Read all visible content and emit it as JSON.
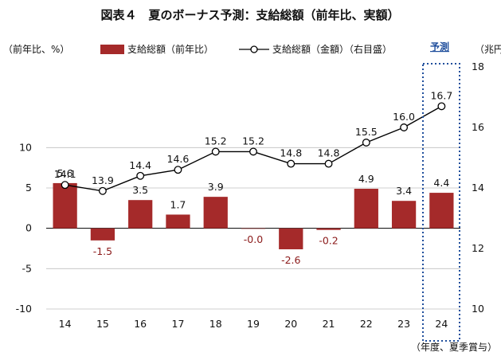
{
  "chart_data": {
    "type": "bar+line",
    "title": "図表４　夏のボーナス予測：支給総額（前年比、実額）",
    "left_axis_label": "（前年比、%）",
    "right_axis_label": "（兆円）",
    "x_axis_label": "（年度、夏季賞与）",
    "forecast_label": "予測",
    "categories": [
      "14",
      "15",
      "16",
      "17",
      "18",
      "19",
      "20",
      "21",
      "22",
      "23",
      "24"
    ],
    "left_ticks": [
      "10",
      "5",
      "0",
      "-5",
      "-10"
    ],
    "left_ylim": [
      -10,
      20
    ],
    "right_ticks": [
      "18",
      "16",
      "14",
      "12",
      "10"
    ],
    "right_ylim": [
      10,
      18
    ],
    "series": [
      {
        "name": "支給総額（前年比）",
        "type": "bar",
        "axis": "left",
        "color": "#a52a2a",
        "values": [
          5.6,
          -1.5,
          3.5,
          1.7,
          3.9,
          -0.04,
          -2.6,
          -0.2,
          4.9,
          3.4,
          4.4
        ],
        "labels": [
          "5.6",
          "-1.5",
          "3.5",
          "1.7",
          "3.9",
          "-0.0",
          "-2.6",
          "-0.2",
          "4.9",
          "3.4",
          "4.4"
        ]
      },
      {
        "name": "支給総額（金額）（右目盛）",
        "type": "line",
        "axis": "right",
        "color": "#000000",
        "values": [
          14.1,
          13.9,
          14.4,
          14.6,
          15.2,
          15.2,
          14.8,
          14.8,
          15.5,
          16.0,
          16.7
        ],
        "labels": [
          "14.1",
          "13.9",
          "14.4",
          "14.6",
          "15.2",
          "15.2",
          "14.8",
          "14.8",
          "15.5",
          "16.0",
          "16.7"
        ]
      }
    ]
  }
}
